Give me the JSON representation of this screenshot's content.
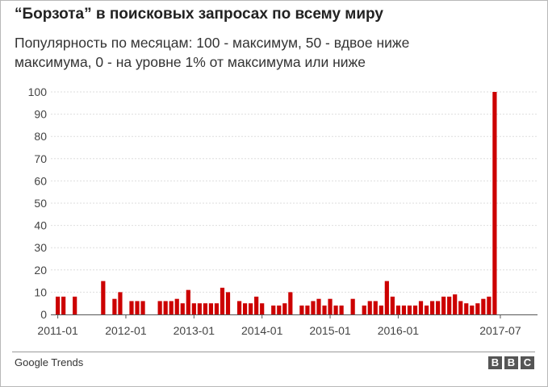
{
  "header": {
    "title": "“Борзота” в поисковых запросах по всему миру",
    "subtitle": "Популярность по месяцам: 100 - максимум, 50 - вдвое ниже максимума, 0 - на уровне 1% от максимума или ниже"
  },
  "footer": {
    "source": "Google Trends",
    "logo_letters": [
      "B",
      "B",
      "C"
    ]
  },
  "chart_data": {
    "type": "bar",
    "title": "“Борзота” в поисковых запросах по всему миру",
    "subtitle": "Популярность по месяцам: 100 - максимум, 50 - вдвое ниже максимума, 0 - на уровне 1% от максимума или ниже",
    "xlabel": "",
    "ylabel": "",
    "ylim": [
      0,
      100
    ],
    "yticks": [
      0,
      10,
      20,
      30,
      40,
      50,
      60,
      70,
      80,
      90,
      100
    ],
    "xticks": [
      "2011-01",
      "2012-01",
      "2013-01",
      "2014-01",
      "2015-01",
      "2016-01",
      "2017-07"
    ],
    "grid": true,
    "legend": "none",
    "bar_color": "#cc0000",
    "categories": [
      "2011-01",
      "2011-02",
      "2011-03",
      "2011-04",
      "2011-05",
      "2011-06",
      "2011-07",
      "2011-08",
      "2011-09",
      "2011-10",
      "2011-11",
      "2011-12",
      "2012-01",
      "2012-02",
      "2012-03",
      "2012-04",
      "2012-05",
      "2012-06",
      "2012-07",
      "2012-08",
      "2012-09",
      "2012-10",
      "2012-11",
      "2012-12",
      "2013-01",
      "2013-02",
      "2013-03",
      "2013-04",
      "2013-05",
      "2013-06",
      "2013-07",
      "2013-08",
      "2013-09",
      "2013-10",
      "2013-11",
      "2013-12",
      "2014-01",
      "2014-02",
      "2014-03",
      "2014-04",
      "2014-05",
      "2014-06",
      "2014-07",
      "2014-08",
      "2014-09",
      "2014-10",
      "2014-11",
      "2014-12",
      "2015-01",
      "2015-02",
      "2015-03",
      "2015-04",
      "2015-05",
      "2015-06",
      "2015-07",
      "2015-08",
      "2015-09",
      "2015-10",
      "2015-11",
      "2015-12",
      "2016-01",
      "2016-02",
      "2016-03",
      "2016-04",
      "2016-05",
      "2016-06",
      "2016-07",
      "2016-08",
      "2016-09",
      "2016-10",
      "2016-11",
      "2016-12",
      "2017-01",
      "2017-02",
      "2017-03",
      "2017-04",
      "2017-05",
      "2017-06",
      "2017-07"
    ],
    "values": [
      8,
      8,
      0,
      8,
      0,
      0,
      0,
      0,
      15,
      0,
      7,
      10,
      0,
      6,
      6,
      6,
      0,
      0,
      6,
      6,
      6,
      7,
      5,
      11,
      5,
      5,
      5,
      5,
      5,
      12,
      10,
      0,
      6,
      5,
      5,
      8,
      5,
      0,
      4,
      4,
      5,
      10,
      0,
      4,
      4,
      6,
      7,
      4,
      7,
      4,
      4,
      0,
      7,
      0,
      4,
      6,
      6,
      4,
      15,
      8,
      4,
      4,
      4,
      4,
      6,
      4,
      6,
      6,
      8,
      8,
      9,
      6,
      5,
      4,
      5,
      7,
      8,
      100,
      0
    ]
  }
}
